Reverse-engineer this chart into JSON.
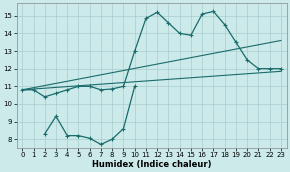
{
  "xlabel": "Humidex (Indice chaleur)",
  "background_color": "#cceaea",
  "grid_color": "#aacccc",
  "line_color": "#1a6b6b",
  "xlim": [
    -0.5,
    23.5
  ],
  "ylim": [
    7.5,
    15.7
  ],
  "yticks": [
    8,
    9,
    10,
    11,
    12,
    13,
    14,
    15
  ],
  "xticks": [
    0,
    1,
    2,
    3,
    4,
    5,
    6,
    7,
    8,
    9,
    10,
    11,
    12,
    13,
    14,
    15,
    16,
    17,
    18,
    19,
    20,
    21,
    22,
    23
  ],
  "reg_line1_x": [
    0,
    23
  ],
  "reg_line1_y": [
    10.8,
    13.6
  ],
  "reg_line2_x": [
    0,
    23
  ],
  "reg_line2_y": [
    10.8,
    11.85
  ],
  "curve1_x": [
    0,
    1,
    2,
    3,
    4,
    5,
    6,
    7,
    8,
    9,
    10,
    11,
    12,
    13,
    14,
    15,
    16,
    17,
    18,
    19,
    20,
    21,
    22,
    23
  ],
  "curve1_y": [
    10.8,
    10.8,
    10.4,
    10.6,
    10.8,
    11.0,
    11.0,
    10.8,
    10.85,
    11.0,
    13.0,
    14.85,
    15.2,
    14.6,
    14.0,
    13.9,
    15.1,
    15.25,
    14.5,
    13.5,
    12.5,
    12.0,
    12.0,
    12.0
  ],
  "curve2_x": [
    2,
    3,
    4,
    5,
    6,
    7,
    8,
    9,
    10
  ],
  "curve2_y": [
    8.3,
    9.3,
    8.2,
    8.2,
    8.05,
    7.7,
    8.0,
    8.6,
    11.0
  ]
}
